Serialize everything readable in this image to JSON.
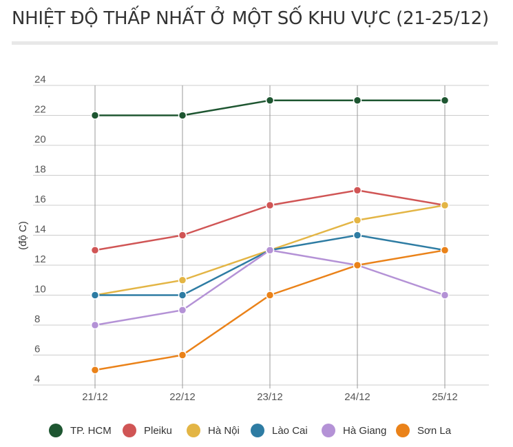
{
  "chart_data": {
    "type": "line",
    "title": "NHIỆT ĐỘ THẤP NHẤT Ở MỘT SỐ KHU VỰC (21-25/12)",
    "ylabel": "(độ C)",
    "xlabel": "",
    "categories": [
      "21/12",
      "22/12",
      "23/12",
      "24/12",
      "25/12"
    ],
    "ylim": [
      4,
      24
    ],
    "yticks": [
      4,
      6,
      8,
      10,
      12,
      14,
      16,
      18,
      20,
      22,
      24
    ],
    "grid": true,
    "legend_position": "bottom",
    "series": [
      {
        "name": "TP. HCM",
        "color": "#1e5631",
        "values": [
          22,
          22,
          23,
          23,
          23
        ]
      },
      {
        "name": "Pleiku",
        "color": "#d05555",
        "values": [
          13,
          14,
          16,
          17,
          16
        ]
      },
      {
        "name": "Hà Nội",
        "color": "#e3b545",
        "values": [
          10,
          11,
          13,
          15,
          16
        ]
      },
      {
        "name": "Lào Cai",
        "color": "#2e7ca3",
        "values": [
          10,
          10,
          13,
          14,
          13
        ]
      },
      {
        "name": "Hà Giang",
        "color": "#b492d6",
        "values": [
          8,
          9,
          13,
          12,
          10
        ]
      },
      {
        "name": "Sơn La",
        "color": "#ea8219",
        "values": [
          5,
          6,
          10,
          12,
          13
        ]
      }
    ]
  }
}
